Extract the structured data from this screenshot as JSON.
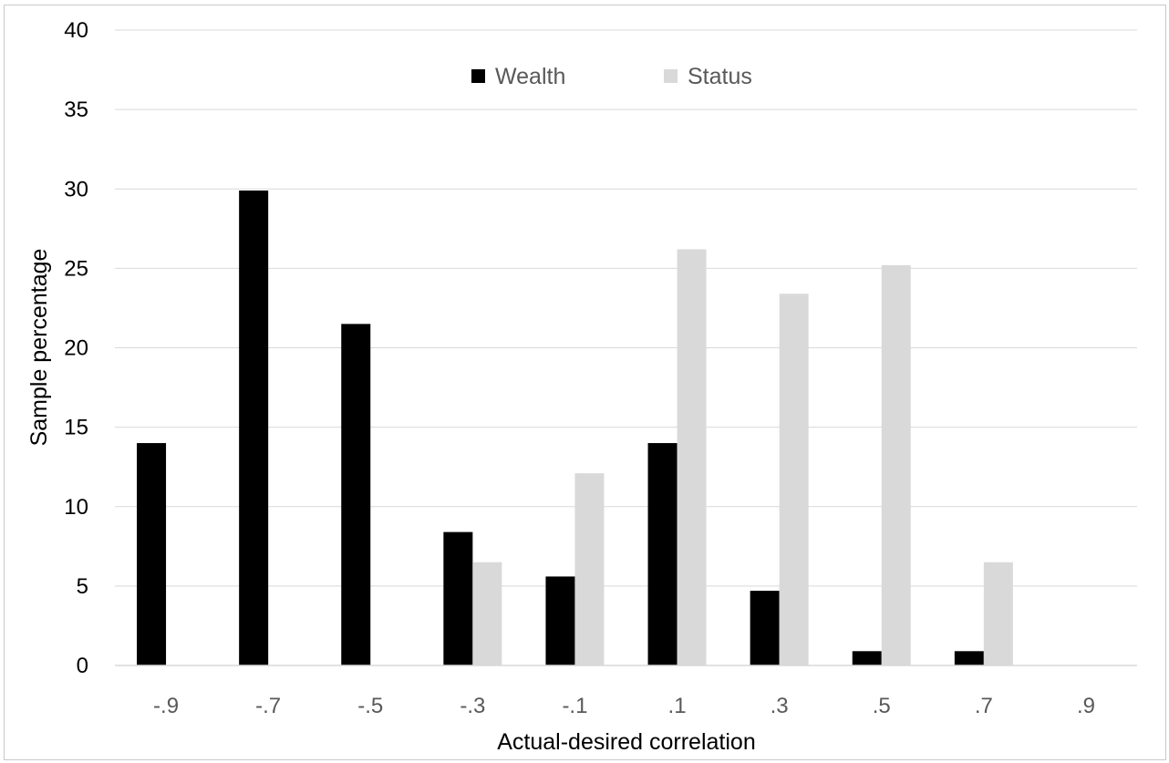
{
  "chart_data": {
    "type": "bar",
    "categories": [
      "-.9",
      "-.7",
      "-.5",
      "-.3",
      "-.1",
      ".1",
      ".3",
      ".5",
      ".7",
      ".9"
    ],
    "series": [
      {
        "name": "Wealth",
        "color": "#000000",
        "values": [
          14.0,
          29.9,
          21.5,
          8.4,
          5.6,
          14.0,
          4.7,
          0.9,
          0.9,
          0
        ]
      },
      {
        "name": "Status",
        "color": "#d9d9d9",
        "values": [
          0,
          0,
          0,
          6.5,
          12.1,
          26.2,
          23.4,
          25.2,
          6.5,
          0
        ]
      }
    ],
    "yticks": [
      "0",
      "5",
      "10",
      "15",
      "20",
      "25",
      "30",
      "35",
      "40"
    ],
    "ylim": [
      0,
      40
    ],
    "xlabel": "Actual-desired correlation",
    "ylabel": "Sample percentage",
    "grid": true,
    "legend_position": "top-center"
  }
}
